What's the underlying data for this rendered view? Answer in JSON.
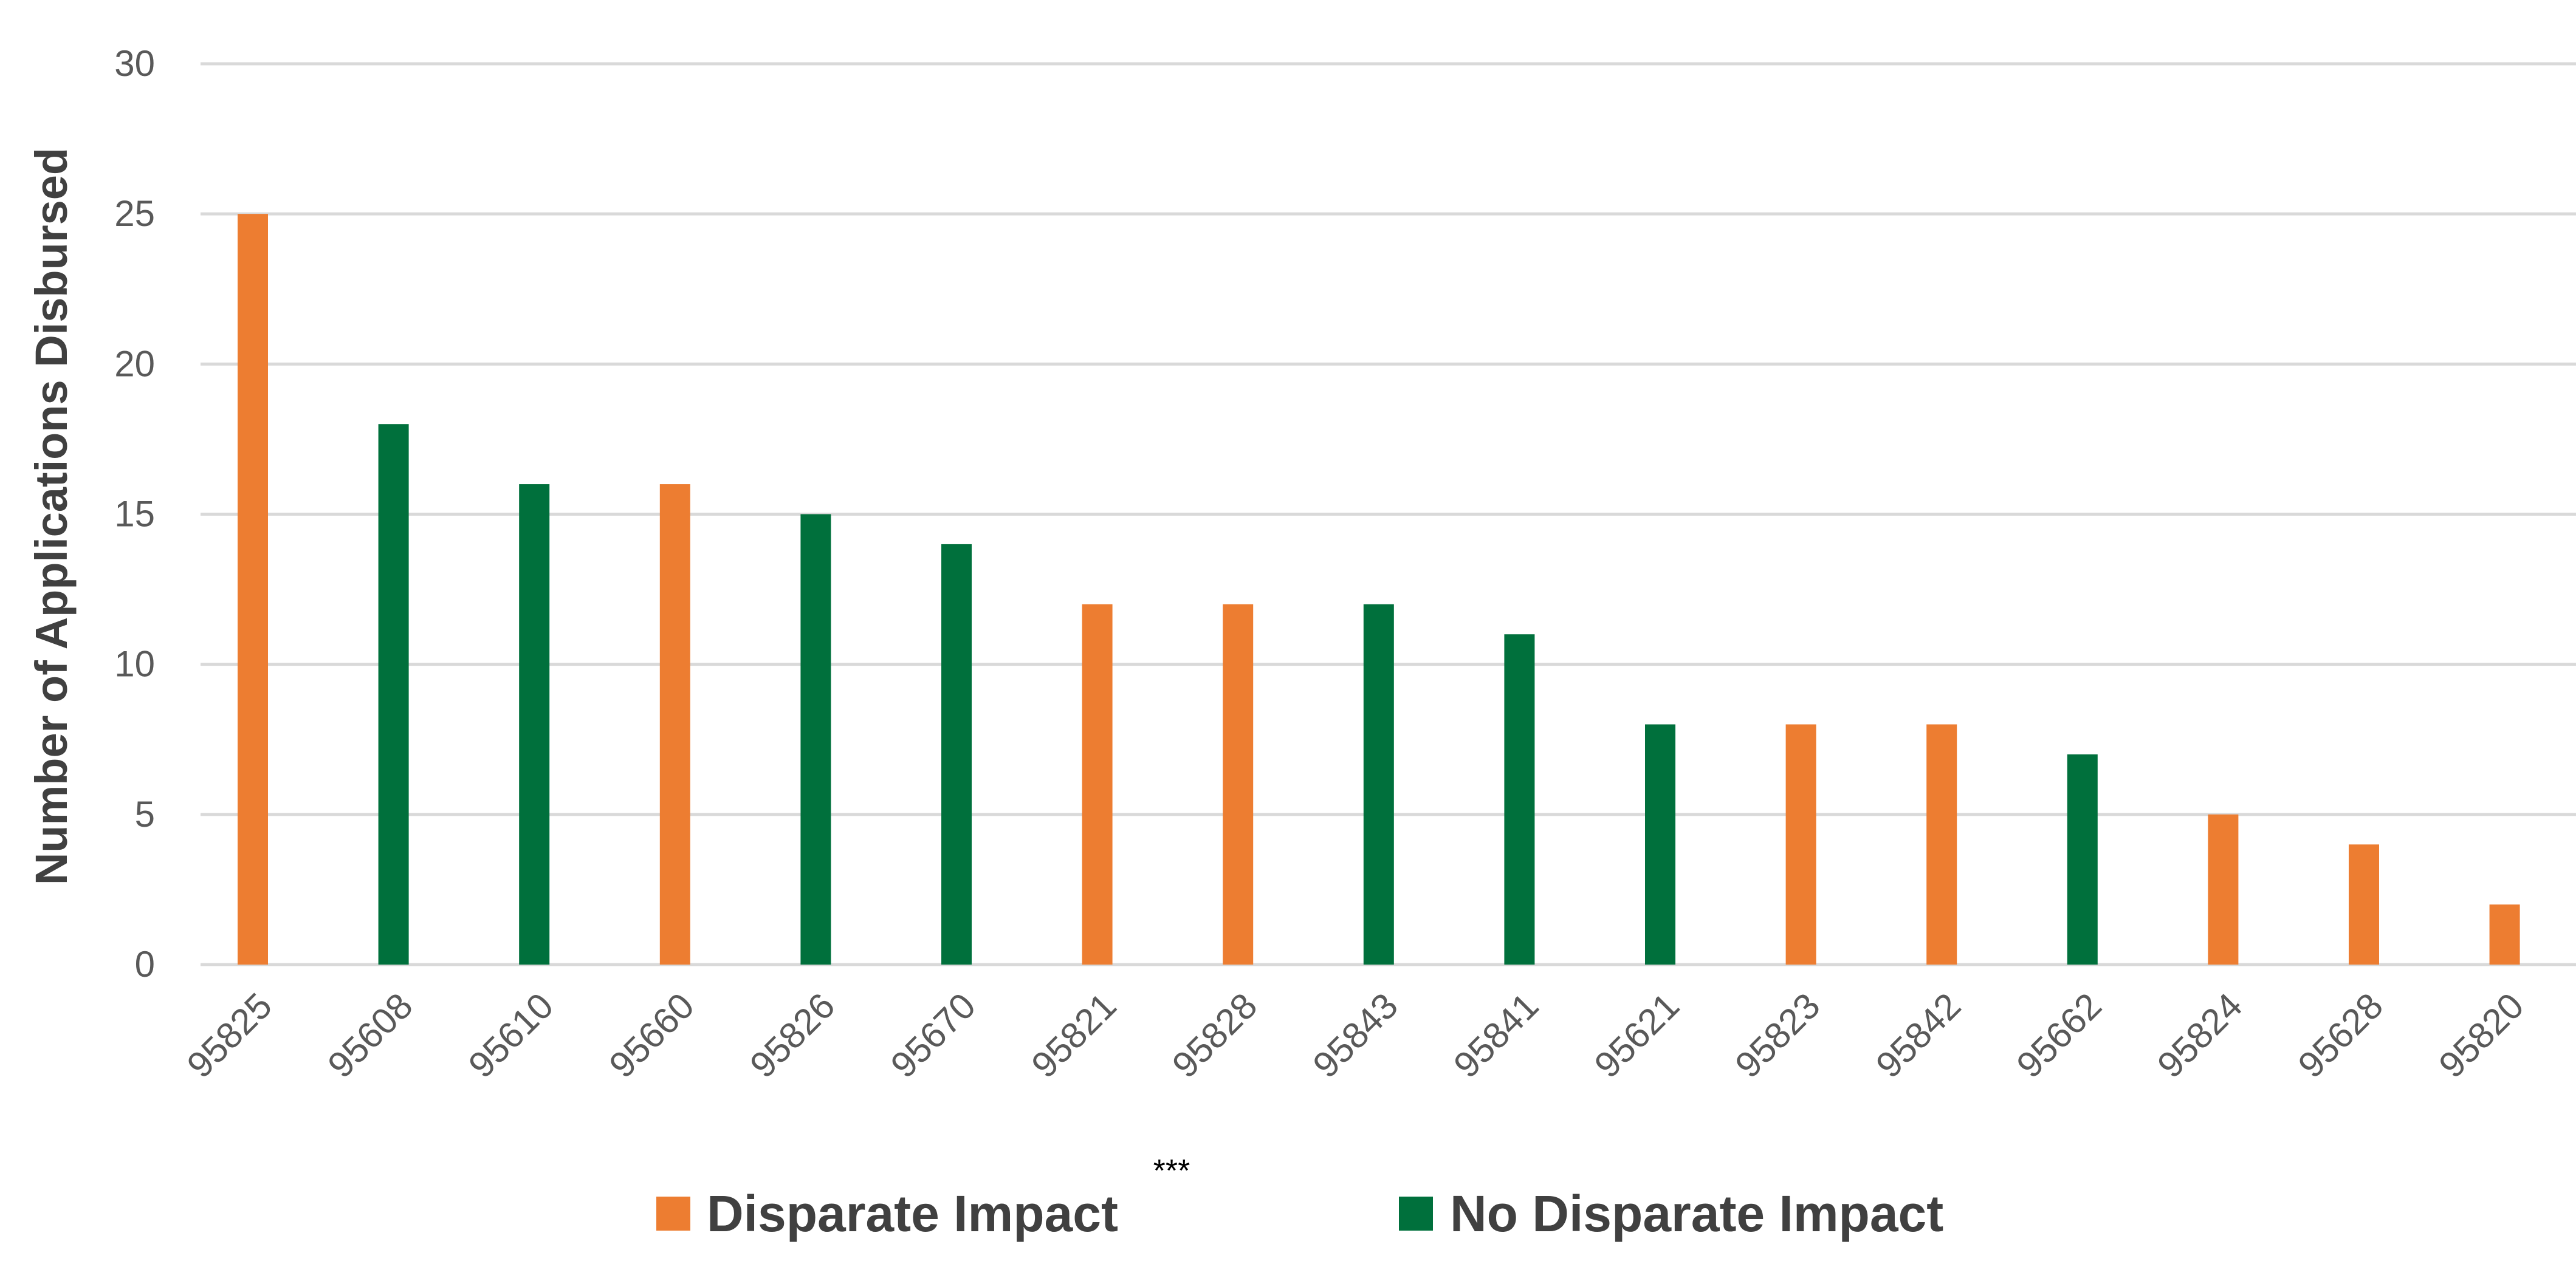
{
  "chart_data": {
    "type": "bar",
    "ylabel": "Number of Applications Disbursed",
    "xlabel": "",
    "ylim": [
      0,
      30
    ],
    "yticks": [
      0,
      5,
      10,
      15,
      20,
      25,
      30
    ],
    "grid": true,
    "legend_position": "bottom",
    "note": "***",
    "legend": [
      {
        "name": "Disparate Impact",
        "color": "#ED7D31"
      },
      {
        "name": "No Disparate Impact",
        "color": "#00703C"
      }
    ],
    "categories": [
      "95825",
      "95608",
      "95610",
      "95660",
      "95826",
      "95670",
      "95821",
      "95828",
      "95843",
      "95841",
      "95621",
      "95823",
      "95842",
      "95662",
      "95824",
      "95628",
      "95820"
    ],
    "values": [
      25,
      18,
      16,
      16,
      15,
      14,
      12,
      12,
      12,
      11,
      8,
      8,
      8,
      7,
      5,
      4,
      2
    ],
    "groups": [
      "Disparate Impact",
      "No Disparate Impact",
      "No Disparate Impact",
      "Disparate Impact",
      "No Disparate Impact",
      "No Disparate Impact",
      "Disparate Impact",
      "Disparate Impact",
      "No Disparate Impact",
      "No Disparate Impact",
      "No Disparate Impact",
      "Disparate Impact",
      "Disparate Impact",
      "No Disparate Impact",
      "Disparate Impact",
      "Disparate Impact",
      "Disparate Impact"
    ]
  }
}
